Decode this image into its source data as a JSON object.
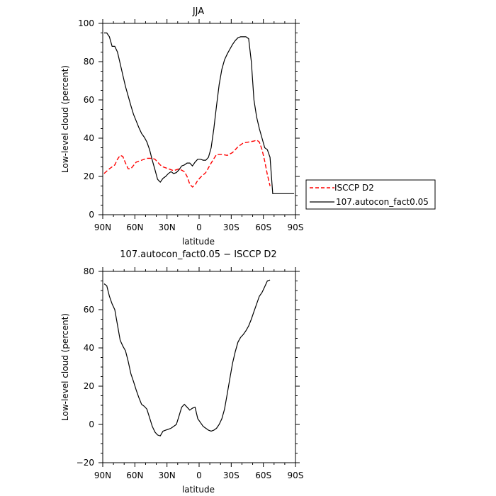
{
  "chart_data": [
    {
      "type": "line",
      "title": "JJA",
      "xlabel": "latitude",
      "ylabel": "Low-level cloud (percent)",
      "xlim": [
        90,
        -90
      ],
      "ylim": [
        0,
        100
      ],
      "xticks": [
        90,
        60,
        30,
        0,
        -30,
        -60,
        -90
      ],
      "xtick_labels": [
        "90N",
        "60N",
        "30N",
        "0",
        "30S",
        "60S",
        "90S"
      ],
      "yticks": [
        0,
        20,
        40,
        60,
        80,
        100
      ],
      "ytick_labels": [
        "0",
        "20",
        "40",
        "60",
        "80",
        "100"
      ],
      "legend_position": "right",
      "series": [
        {
          "name": "ISCCP D2",
          "color": "#ff0000",
          "dash": "dashed",
          "x": [
            88.75,
            83.75,
            78.75,
            76.25,
            73.75,
            71.25,
            68.75,
            66.25,
            63.75,
            58.75,
            53.75,
            48.75,
            43.75,
            41.25,
            38.75,
            36.25,
            33.75,
            28.75,
            23.75,
            18.75,
            13.75,
            11.25,
            8.75,
            6.25,
            3.75,
            1.25,
            -1.25,
            -6.25,
            -11.25,
            -16.25,
            -21.25,
            -26.25,
            -31.25,
            -36.25,
            -41.25,
            -46.25,
            -51.25,
            -53.75,
            -56.25,
            -58.75,
            -61.25,
            -63.75,
            -66.25
          ],
          "y": [
            21.5,
            24,
            26,
            29,
            31,
            30.5,
            27,
            24,
            24,
            27.5,
            28.5,
            29.5,
            29.5,
            29,
            27.5,
            26,
            25,
            24,
            23,
            24,
            22.5,
            20,
            16,
            14.5,
            15.5,
            18,
            19.5,
            22,
            27,
            31.5,
            31.5,
            31,
            32.5,
            35.5,
            37.5,
            38,
            38.5,
            39,
            38,
            34,
            28,
            21,
            15
          ]
        },
        {
          "name": "107.autocon_fact0.05",
          "color": "#000000",
          "dash": "solid",
          "x": [
            88.75,
            86.25,
            83.75,
            81.25,
            78.75,
            76.25,
            73.75,
            71.25,
            68.75,
            66.25,
            63.75,
            61.25,
            58.75,
            56.25,
            53.75,
            51.25,
            48.75,
            46.25,
            43.75,
            41.25,
            38.75,
            36.25,
            33.75,
            31.25,
            28.75,
            26.25,
            23.75,
            21.25,
            18.75,
            16.25,
            13.75,
            11.25,
            8.75,
            6.25,
            3.75,
            1.25,
            -1.25,
            -3.75,
            -6.25,
            -8.75,
            -11.25,
            -13.75,
            -16.25,
            -18.75,
            -21.25,
            -23.75,
            -26.25,
            -28.75,
            -31.25,
            -33.75,
            -36.25,
            -38.75,
            -41.25,
            -43.75,
            -46.25,
            -48.75,
            -51.25,
            -53.75,
            -56.25,
            -58.75,
            -61.25,
            -63.75,
            -66.25,
            -68.75,
            -71.25,
            -73.75,
            -76.25,
            -78.75,
            -81.25,
            -83.75,
            -86.25,
            -88.75
          ],
          "y": [
            95,
            95,
            93,
            88,
            88,
            85,
            79,
            73,
            67,
            62,
            57,
            52.5,
            49,
            45.5,
            42.5,
            40.5,
            38,
            34,
            28.5,
            23.5,
            18.5,
            17,
            19,
            20,
            21.5,
            22.5,
            21.5,
            22,
            23.5,
            25.5,
            26,
            27,
            27,
            25.5,
            27.5,
            29,
            29,
            28.5,
            28.5,
            30,
            35,
            45,
            57,
            68,
            76,
            81,
            84,
            86.5,
            89,
            91,
            92.5,
            93,
            93,
            93,
            92,
            80,
            60,
            51,
            45,
            40,
            35,
            34,
            30,
            11,
            11,
            11,
            11,
            11,
            11,
            11,
            11,
            11
          ]
        }
      ]
    },
    {
      "type": "line",
      "title": "107.autocon_fact0.05 − ISCCP D2",
      "xlabel": "latitude",
      "ylabel": "Low-level cloud (percent)",
      "xlim": [
        90,
        -90
      ],
      "ylim": [
        -20,
        80
      ],
      "xticks": [
        90,
        60,
        30,
        0,
        -30,
        -60,
        -90
      ],
      "xtick_labels": [
        "90N",
        "60N",
        "30N",
        "0",
        "30S",
        "60S",
        "90S"
      ],
      "yticks": [
        -20,
        0,
        20,
        40,
        60,
        80
      ],
      "ytick_labels": [
        "−20",
        "0",
        "20",
        "40",
        "60",
        "80"
      ],
      "series": [
        {
          "color": "#000000",
          "dash": "solid",
          "x": [
            88.75,
            86.25,
            83.75,
            81.25,
            78.75,
            76.25,
            73.75,
            71.25,
            68.75,
            66.25,
            63.75,
            61.25,
            58.75,
            56.25,
            53.75,
            51.25,
            48.75,
            46.25,
            43.75,
            41.25,
            38.75,
            36.25,
            33.75,
            31.25,
            28.75,
            26.25,
            23.75,
            21.25,
            18.75,
            16.25,
            13.75,
            11.25,
            8.75,
            6.25,
            3.75,
            1.25,
            -1.25,
            -3.75,
            -6.25,
            -8.75,
            -11.25,
            -13.75,
            -16.25,
            -18.75,
            -21.25,
            -23.75,
            -26.25,
            -28.75,
            -31.25,
            -33.75,
            -36.25,
            -38.75,
            -41.25,
            -43.75,
            -46.25,
            -48.75,
            -51.25,
            -53.75,
            -56.25,
            -58.75,
            -61.25,
            -63.75,
            -66.25
          ],
          "y": [
            73.5,
            72.5,
            67,
            63,
            60,
            52,
            44,
            41,
            38.5,
            33,
            26.5,
            22.5,
            18,
            14,
            10.5,
            9.5,
            8,
            3.5,
            -1,
            -4,
            -5.5,
            -6,
            -3.5,
            -3,
            -2.5,
            -2,
            -1,
            0,
            4.5,
            9,
            10.5,
            9,
            7.5,
            8.5,
            9,
            3,
            1,
            -1,
            -2,
            -3,
            -3.5,
            -3,
            -2,
            0,
            3,
            8,
            16,
            24,
            32,
            38,
            43,
            45.5,
            47,
            49,
            51.5,
            55,
            59,
            63,
            67,
            69,
            72,
            75,
            75.5
          ]
        }
      ]
    }
  ]
}
